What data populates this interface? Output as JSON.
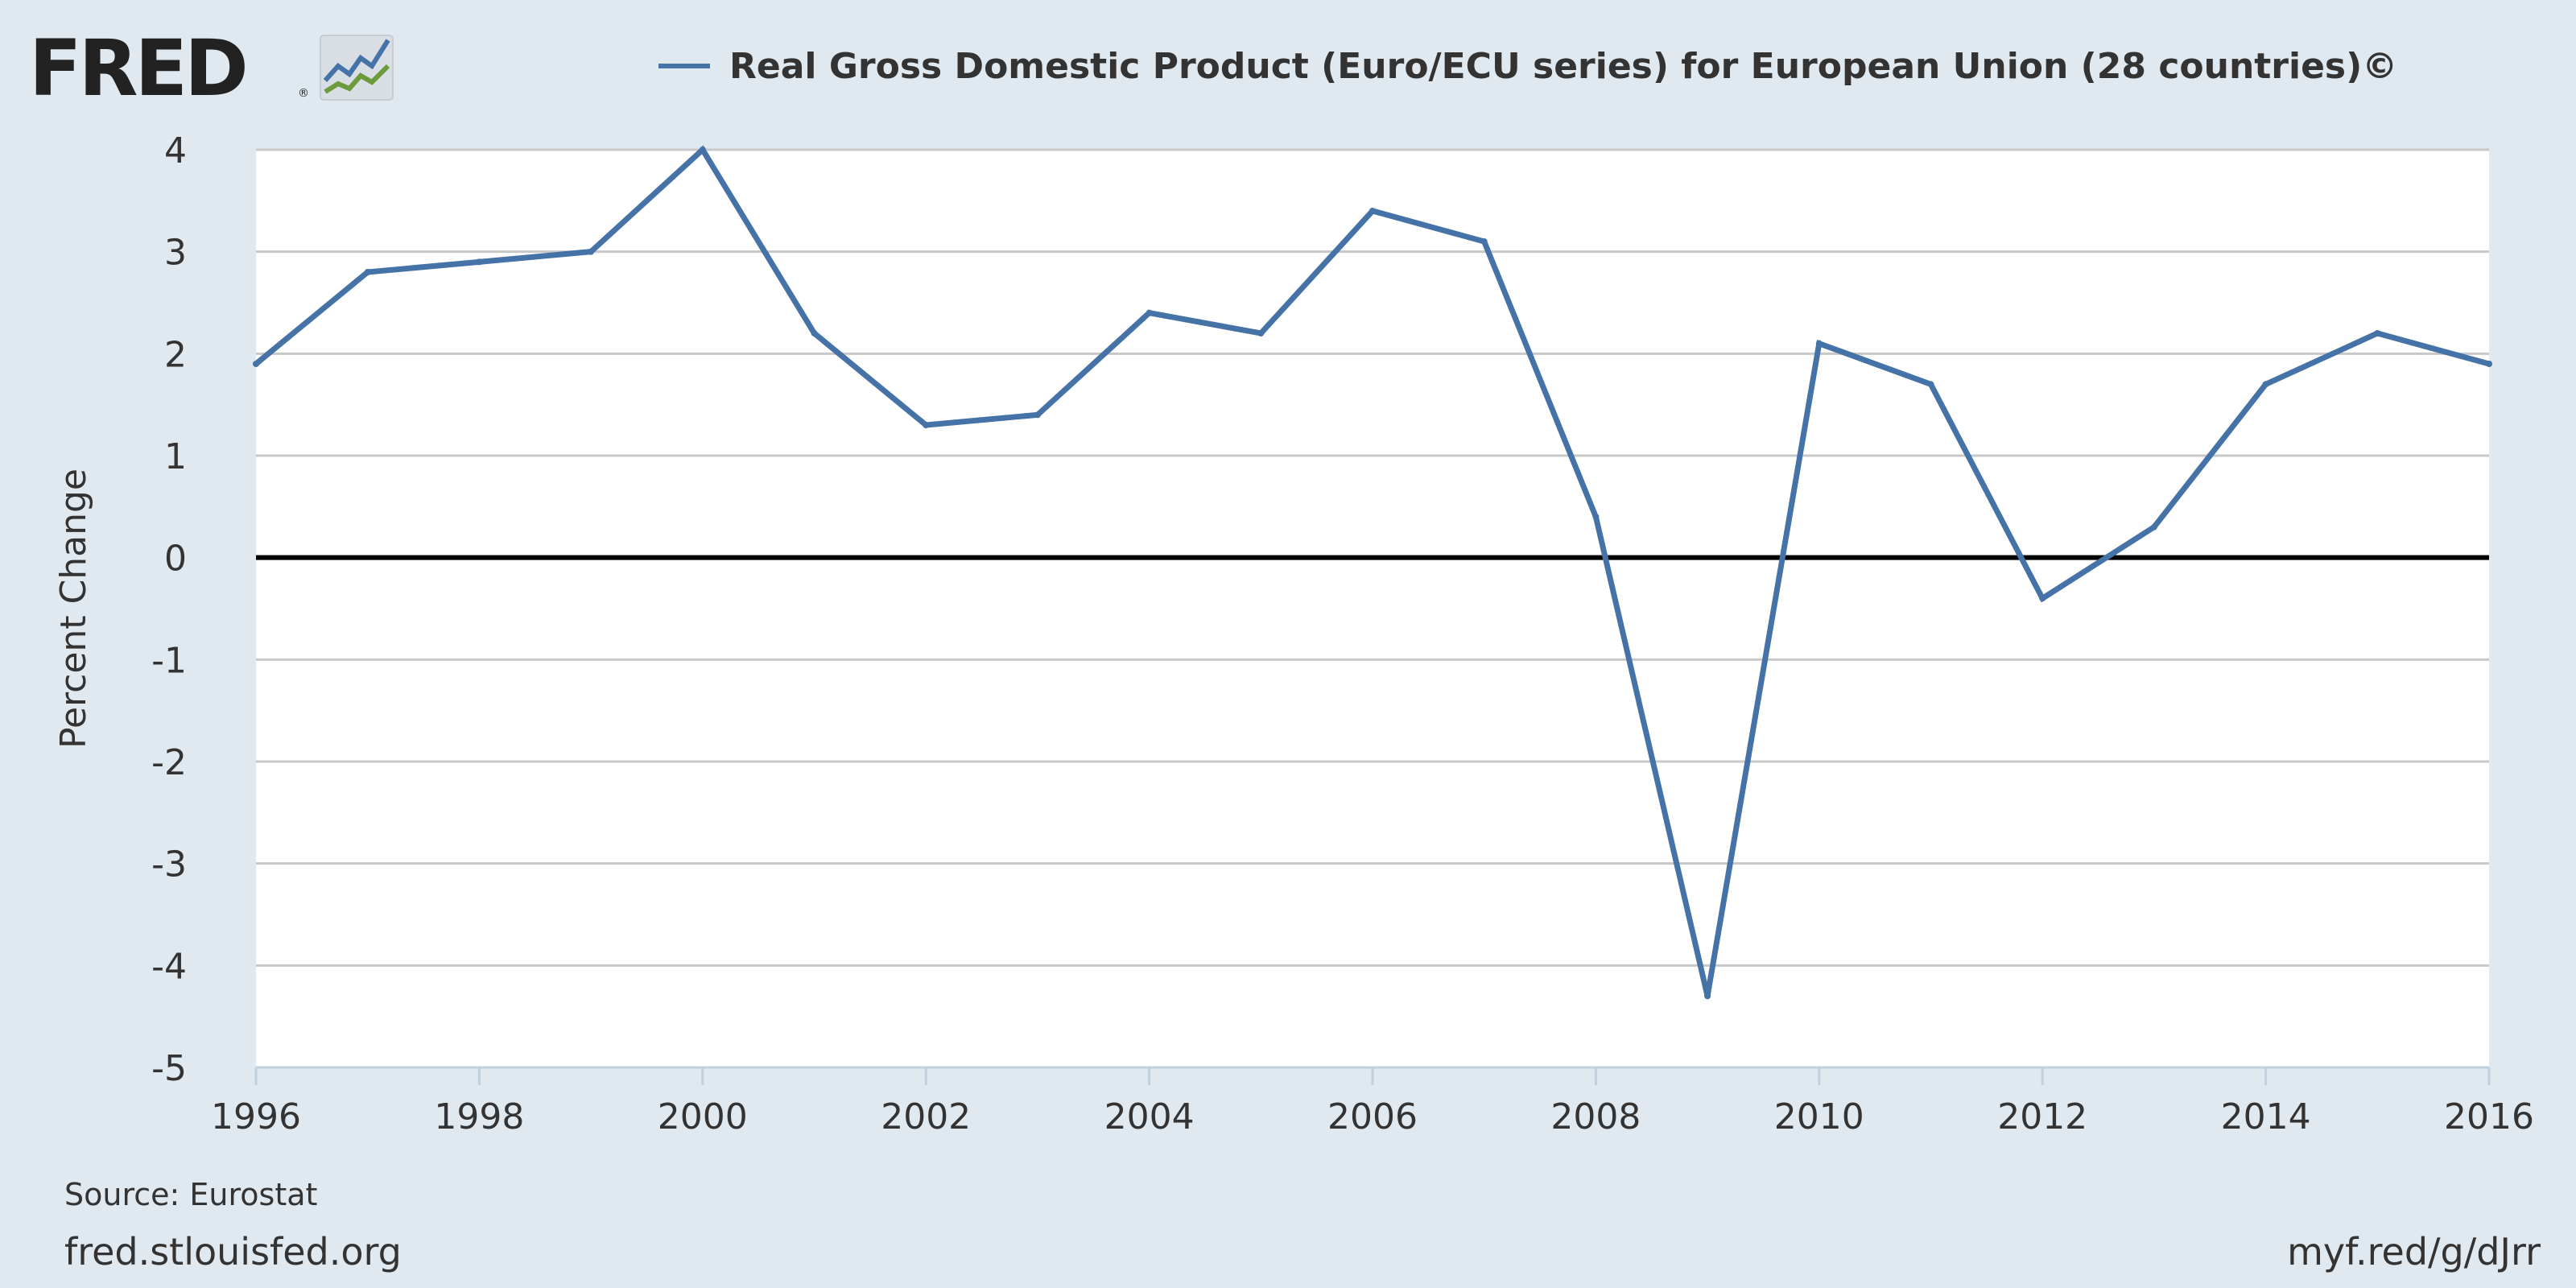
{
  "header": {
    "logo_text": "FRED",
    "logo_mark": "®",
    "logo_icon": "line-chart-icon"
  },
  "legend": {
    "label": "Real Gross Domestic Product (Euro/ECU series) for European Union (28 countries)©",
    "color": "#4572a7"
  },
  "footer": {
    "source": "Source: Eurostat",
    "site": "fred.stlouisfed.org",
    "shortlink": "myf.red/g/dJrr"
  },
  "chart_data": {
    "type": "line",
    "title": "",
    "xlabel": "",
    "ylabel": "Percent Change",
    "xlim": [
      1996,
      2016
    ],
    "ylim": [
      -5,
      4
    ],
    "x_ticks": [
      "1996",
      "1998",
      "2000",
      "2002",
      "2004",
      "2006",
      "2008",
      "2010",
      "2012",
      "2014",
      "2016"
    ],
    "y_ticks": [
      "4",
      "3",
      "2",
      "1",
      "0",
      "-1",
      "-2",
      "-3",
      "-4",
      "-5"
    ],
    "grid": true,
    "zero_line": true,
    "legend_position": "top",
    "series": [
      {
        "name": "Real Gross Domestic Product (Euro/ECU series) for European Union (28 countries)©",
        "color": "#4572a7",
        "x": [
          1996,
          1997,
          1998,
          1999,
          2000,
          2001,
          2002,
          2003,
          2004,
          2005,
          2006,
          2007,
          2008,
          2009,
          2010,
          2011,
          2012,
          2013,
          2014,
          2015,
          2016
        ],
        "values": [
          1.9,
          2.8,
          2.9,
          3.0,
          4.0,
          2.2,
          1.3,
          1.4,
          2.4,
          2.2,
          3.4,
          3.1,
          0.4,
          -4.3,
          2.1,
          1.7,
          -0.4,
          0.3,
          1.7,
          2.2,
          1.9
        ]
      }
    ]
  }
}
